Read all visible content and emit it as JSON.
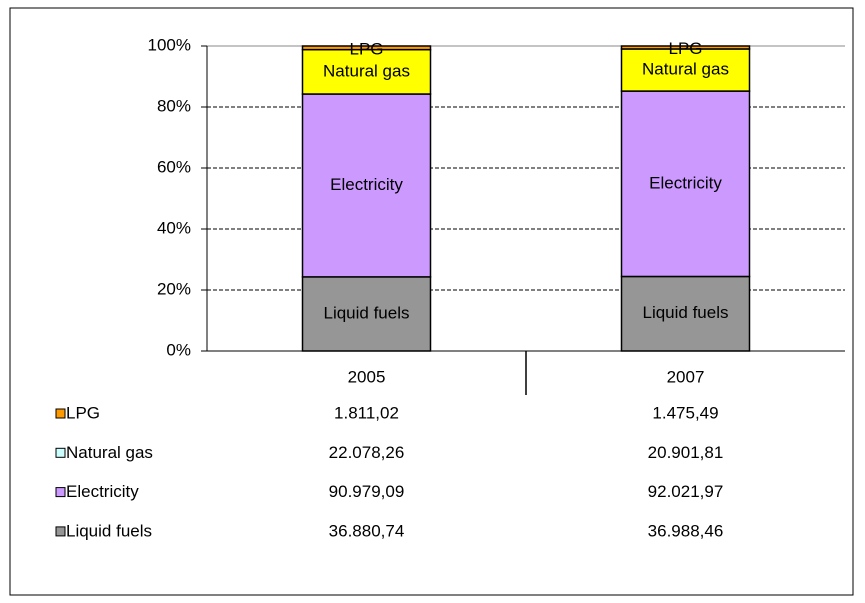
{
  "chart_data": {
    "type": "stacked_percent_bar",
    "categories": [
      "2005",
      "2007"
    ],
    "series": [
      {
        "name": "Liquid fuels",
        "color": "#969696",
        "key_color": "#969696",
        "values": [
          36880.74,
          36988.46
        ],
        "value_labels": [
          "36.880,74",
          "36.988,46"
        ]
      },
      {
        "name": "Electricity",
        "color": "#cc99ff",
        "key_color": "#cc99ff",
        "values": [
          90979.09,
          92021.97
        ],
        "value_labels": [
          "90.979,09",
          "92.021,97"
        ]
      },
      {
        "name": "Natural gas",
        "color": "#ffff00",
        "key_color": "#ccffff",
        "values": [
          22078.26,
          20901.81
        ],
        "value_labels": [
          "22.078,26",
          "20.901,81"
        ]
      },
      {
        "name": "LPG",
        "color": "#ff9900",
        "key_color": "#ff9900",
        "values": [
          1811.02,
          1475.49
        ],
        "value_labels": [
          "1.811,02",
          "1.475,49"
        ]
      }
    ],
    "ylim": [
      0,
      100
    ],
    "yticks": [
      {
        "value": 0,
        "label": "0%"
      },
      {
        "value": 20,
        "label": "20%"
      },
      {
        "value": 40,
        "label": "40%"
      },
      {
        "value": 60,
        "label": "60%"
      },
      {
        "value": 80,
        "label": "80%"
      },
      {
        "value": 100,
        "label": "100%"
      }
    ],
    "grid": true
  }
}
